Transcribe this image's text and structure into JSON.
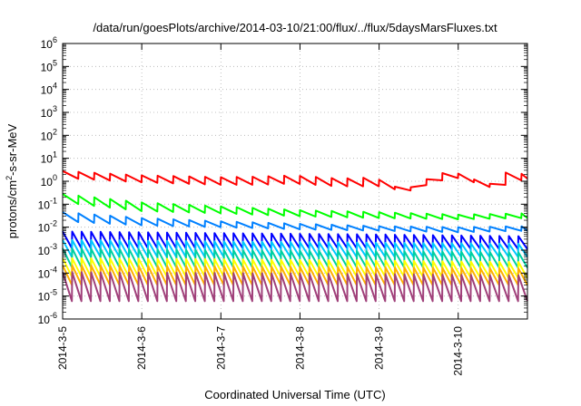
{
  "chart_data": {
    "type": "line",
    "title": "/data/run/goesPlots/archive/2014-03-10/21:00/flux/../flux/5daysMarsFluxes.txt",
    "xlabel": "Coordinated Universal Time (UTC)",
    "ylabel_parts": [
      "protons/cm",
      "2",
      "-s-sr-MeV"
    ],
    "y_scale": "log",
    "ylim": [
      1e-06,
      1000000.0
    ],
    "y_ticks": [
      {
        "base": "10",
        "exp": "-6",
        "value": 1e-06
      },
      {
        "base": "10",
        "exp": "-5",
        "value": 1e-05
      },
      {
        "base": "10",
        "exp": "-4",
        "value": 0.0001
      },
      {
        "base": "10",
        "exp": "-3",
        "value": 0.001
      },
      {
        "base": "10",
        "exp": "-2",
        "value": 0.01
      },
      {
        "base": "10",
        "exp": "-1",
        "value": 0.1
      },
      {
        "base": "10",
        "exp": "0",
        "value": 1
      },
      {
        "base": "10",
        "exp": "1",
        "value": 10
      },
      {
        "base": "10",
        "exp": "2",
        "value": 100
      },
      {
        "base": "10",
        "exp": "3",
        "value": 1000
      },
      {
        "base": "10",
        "exp": "4",
        "value": 10000
      },
      {
        "base": "10",
        "exp": "5",
        "value": 100000
      },
      {
        "base": "10",
        "exp": "6",
        "value": 1000000
      }
    ],
    "xlim": [
      "2014-03-05 00:00",
      "2014-03-10 21:00"
    ],
    "x_tick_labels": [
      "2014-3-5",
      "2014-3-6",
      "2014-3-7",
      "2014-3-8",
      "2014-3-9",
      "2014-3-10"
    ],
    "x_ticks_days": [
      0,
      1,
      2,
      3,
      4,
      5
    ],
    "x_days_span": 5.875,
    "grid": true,
    "series": [
      {
        "color": "#ff0000",
        "sawtooth_period_days": 0.2,
        "envelope": [
          [
            0,
            2.8,
            1.4
          ],
          [
            1,
            1.8,
            0.9
          ],
          [
            2,
            1.5,
            0.7
          ],
          [
            2.5,
            1.6,
            0.7
          ],
          [
            2.9,
            1.8,
            0.8
          ],
          [
            3.5,
            1.3,
            0.6
          ],
          [
            3.95,
            1.5,
            0.6
          ],
          [
            4.05,
            0.9,
            0.6
          ],
          [
            4.25,
            0.5,
            0.4
          ],
          [
            4.35,
            0.45,
            0.35
          ],
          [
            4.55,
            1.0,
            0.6
          ],
          [
            4.75,
            2.2,
            1.0
          ],
          [
            4.95,
            2.5,
            1.5
          ],
          [
            5.2,
            1.2,
            0.9
          ],
          [
            5.45,
            0.7,
            0.5
          ],
          [
            5.6,
            2.4,
            0.7
          ],
          [
            5.875,
            2.0,
            1.3
          ]
        ]
      },
      {
        "color": "#00ff00",
        "sawtooth_period_days": 0.2,
        "envelope": [
          [
            0,
            0.28,
            0.12
          ],
          [
            1,
            0.12,
            0.05
          ],
          [
            2,
            0.08,
            0.04
          ],
          [
            3,
            0.055,
            0.03
          ],
          [
            4,
            0.045,
            0.025
          ],
          [
            5,
            0.035,
            0.022
          ],
          [
            5.875,
            0.04,
            0.025
          ]
        ]
      },
      {
        "color": "#0080ff",
        "sawtooth_period_days": 0.2,
        "envelope": [
          [
            0,
            0.045,
            0.018
          ],
          [
            1,
            0.025,
            0.012
          ],
          [
            2,
            0.018,
            0.01
          ],
          [
            3,
            0.014,
            0.008
          ],
          [
            4,
            0.011,
            0.007
          ],
          [
            5,
            0.01,
            0.006
          ],
          [
            5.875,
            0.011,
            0.007
          ]
        ]
      },
      {
        "color": "#0000ff",
        "sawtooth_period_days": 0.12,
        "envelope": [
          [
            0,
            0.0065,
            0.0012
          ],
          [
            2,
            0.0055,
            0.0012
          ],
          [
            4,
            0.0048,
            0.0012
          ],
          [
            5.875,
            0.004,
            0.0011
          ]
        ]
      },
      {
        "color": "#00c8ff",
        "sawtooth_period_days": 0.12,
        "envelope": [
          [
            0,
            0.0028,
            0.0005
          ],
          [
            2,
            0.0024,
            0.0005
          ],
          [
            4,
            0.0021,
            0.0005
          ],
          [
            5.875,
            0.0019,
            0.0005
          ]
        ]
      },
      {
        "color": "#00d0a0",
        "sawtooth_period_days": 0.12,
        "envelope": [
          [
            0,
            0.0012,
            0.00018
          ],
          [
            2,
            0.001,
            0.00018
          ],
          [
            4,
            0.0009,
            0.00018
          ],
          [
            5.875,
            0.0008,
            0.00017
          ]
        ]
      },
      {
        "color": "#ffff00",
        "sawtooth_period_days": 0.12,
        "envelope": [
          [
            0,
            0.00045,
            7e-05
          ],
          [
            2,
            0.0004,
            7e-05
          ],
          [
            4,
            0.00035,
            7e-05
          ],
          [
            5.875,
            0.0003,
            6e-05
          ]
        ]
      },
      {
        "color": "#ffb000",
        "sawtooth_period_days": 0.12,
        "envelope": [
          [
            0,
            0.00022,
            3e-05
          ],
          [
            2,
            0.0002,
            3e-05
          ],
          [
            4,
            0.00018,
            3e-05
          ],
          [
            5.875,
            0.00016,
            3e-05
          ]
        ]
      },
      {
        "color": "#a0407a",
        "sawtooth_period_days": 0.12,
        "envelope": [
          [
            0,
            0.00011,
            6e-06
          ],
          [
            2,
            0.0001,
            6e-06
          ],
          [
            4,
            9e-05,
            6e-06
          ],
          [
            5.875,
            8e-05,
            6e-06
          ]
        ]
      }
    ]
  }
}
